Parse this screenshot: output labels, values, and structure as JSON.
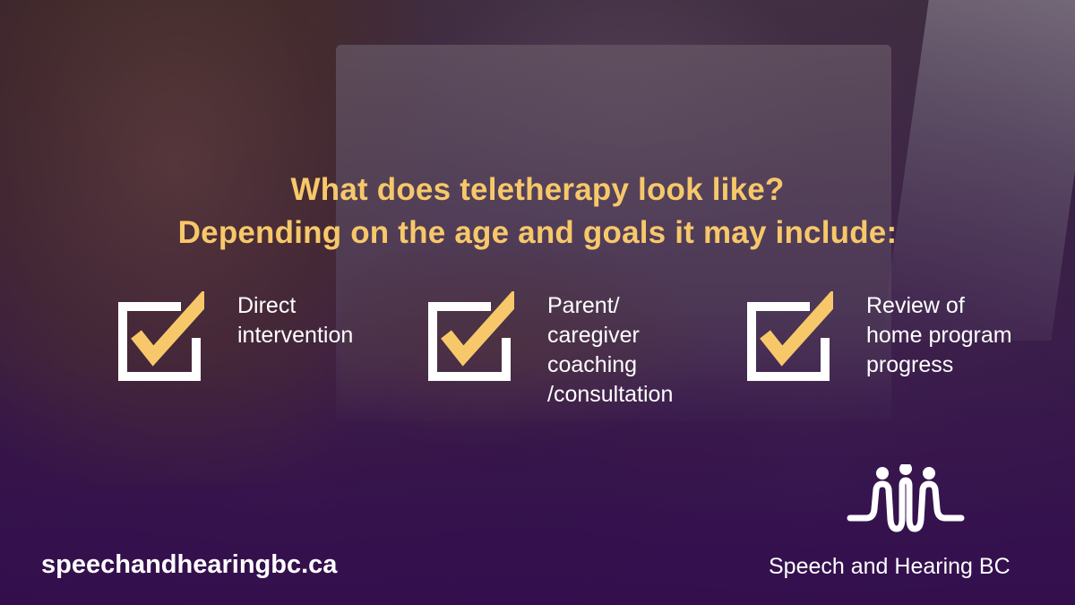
{
  "headline": {
    "line1": "What does teletherapy look like?",
    "line2": "Depending on the age and goals it may include:"
  },
  "items": [
    {
      "lines": [
        "Direct",
        "intervention"
      ]
    },
    {
      "lines": [
        "Parent/",
        "caregiver",
        "coaching",
        "/consultation"
      ]
    },
    {
      "lines": [
        "Review of",
        "home program",
        "progress"
      ]
    }
  ],
  "footer": {
    "website": "speechandhearingbc.ca",
    "brand": "Speech and Hearing BC"
  },
  "colors": {
    "accent": "#f7c86a",
    "text": "#ffffff",
    "background": "#3a1650"
  },
  "icons": [
    "checkbox-checked-icon",
    "speech-and-hearing-bc-logo"
  ]
}
